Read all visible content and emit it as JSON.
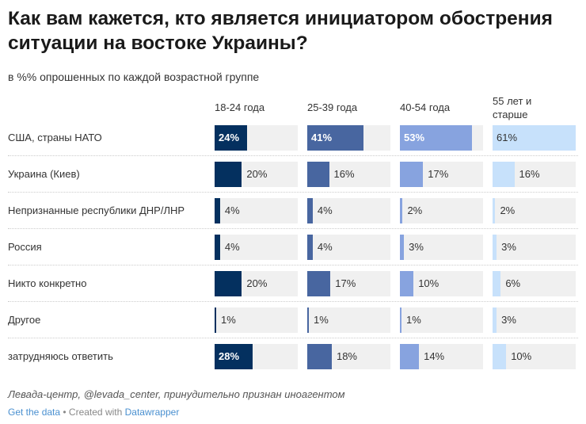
{
  "title": "Как вам кажется, кто является инициатором обострения ситуации на востоке Украины?",
  "subtitle": "в %% опрошенных по каждой возрастной группе",
  "source": "Левада-центр, @levada_center, принудительно признан иноагентом",
  "footer": {
    "get_data": "Get the data",
    "sep": " • Created with ",
    "datawrapper": "Datawrapper"
  },
  "colors": [
    "#04305f",
    "#4866a0",
    "#87a3df",
    "#c7e1fb"
  ],
  "chart_data": {
    "type": "table",
    "title": "Как вам кажется, кто является инициатором обострения ситуации на востоке Украины?",
    "columns": [
      "18-24 года",
      "25-39 года",
      "40-54 года",
      "55 лет и старше"
    ],
    "max": 61,
    "rows": [
      {
        "label": "США, страны НАТО",
        "values": [
          24,
          41,
          53,
          61
        ]
      },
      {
        "label": "Украина (Киев)",
        "values": [
          20,
          16,
          17,
          16
        ]
      },
      {
        "label": "Непризнанные республики ДНР/ЛНР",
        "values": [
          4,
          4,
          2,
          2
        ]
      },
      {
        "label": "Россия",
        "values": [
          4,
          4,
          3,
          3
        ]
      },
      {
        "label": "Никто конкретно",
        "values": [
          20,
          17,
          10,
          6
        ]
      },
      {
        "label": "Другое",
        "values": [
          1,
          1,
          1,
          3
        ]
      },
      {
        "label": "затрудняюсь ответить",
        "values": [
          28,
          18,
          14,
          10
        ]
      }
    ]
  }
}
